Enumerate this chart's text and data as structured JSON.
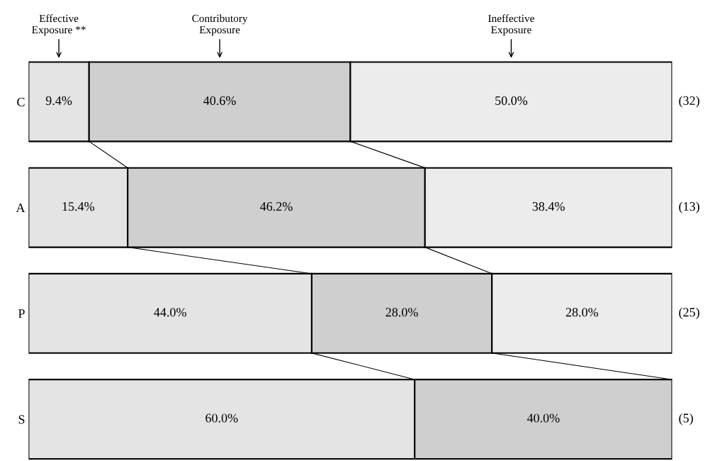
{
  "chart_data": {
    "type": "bar",
    "orientation": "horizontal",
    "stacked": true,
    "categories": [
      "C",
      "A",
      "P",
      "S"
    ],
    "series": [
      {
        "name": "Effective\nExposure **",
        "color": "#e4e4e4",
        "values": [
          9.4,
          15.4,
          44.0,
          60.0
        ],
        "value_labels": [
          "9.4%",
          "15.4%",
          "44.0%",
          "60.0%"
        ]
      },
      {
        "name": "Contributory\nExposure",
        "color": "#cfcfcf",
        "values": [
          40.6,
          46.2,
          28.0,
          40.0
        ],
        "value_labels": [
          "40.6%",
          "46.2%",
          "28.0%",
          "40.0%"
        ]
      },
      {
        "name": "Ineffective\nExposure",
        "color": "#ececec",
        "values": [
          50.0,
          38.4,
          28.0,
          null
        ],
        "value_labels": [
          "50.0%",
          "38.4%",
          "28.0%",
          null
        ]
      }
    ],
    "annotations": [
      "(32)",
      "(13)",
      "(25)",
      "(5)"
    ],
    "tick_labels": "y",
    "grid": false,
    "legend": false
  }
}
